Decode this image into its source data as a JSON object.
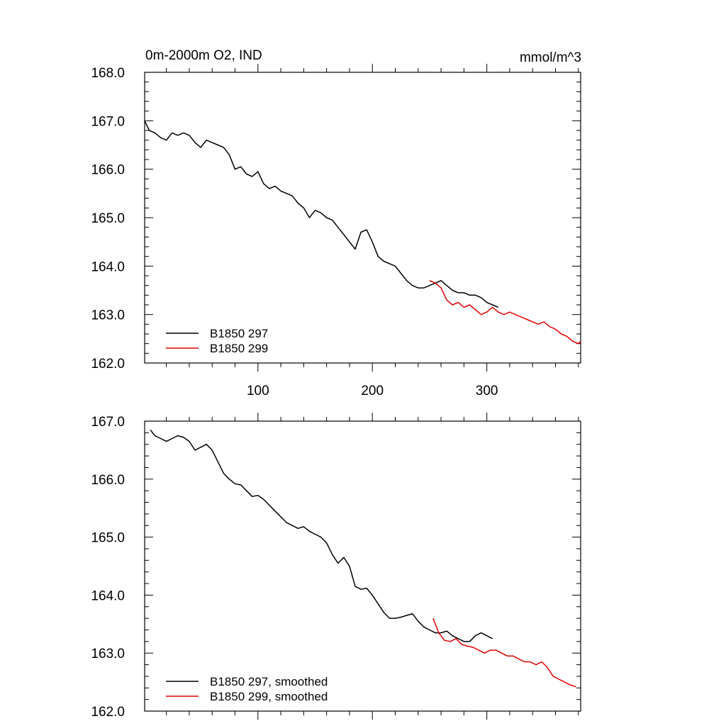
{
  "chart_data": [
    {
      "type": "line",
      "title": "0m-2000m O2, IND",
      "units": "mmol/m^3",
      "xlabel": "",
      "ylabel": "",
      "xlim": [
        1,
        382
      ],
      "ylim": [
        162.0,
        168.0
      ],
      "x_ticks": [
        100,
        200,
        300
      ],
      "x_tick_labels": [
        "100",
        "200",
        "300"
      ],
      "y_ticks": [
        162.0,
        163.0,
        164.0,
        165.0,
        166.0,
        167.0,
        168.0
      ],
      "y_tick_labels": [
        "162.0",
        "163.0",
        "164.0",
        "165.0",
        "166.0",
        "167.0",
        "168.0"
      ],
      "legend_position": "bottom-left",
      "series": [
        {
          "name": "B1850 297",
          "color": "#000000",
          "x": [
            1,
            5,
            10,
            15,
            20,
            25,
            30,
            35,
            40,
            45,
            50,
            55,
            60,
            65,
            70,
            75,
            80,
            85,
            90,
            95,
            100,
            105,
            110,
            115,
            120,
            125,
            130,
            135,
            140,
            145,
            150,
            155,
            160,
            165,
            170,
            175,
            180,
            185,
            190,
            195,
            200,
            205,
            210,
            215,
            220,
            225,
            230,
            235,
            240,
            245,
            250,
            255,
            260,
            265,
            270,
            275,
            280,
            285,
            290,
            295,
            300,
            305,
            310
          ],
          "values": [
            167.0,
            166.8,
            166.75,
            166.65,
            166.6,
            166.75,
            166.7,
            166.75,
            166.7,
            166.55,
            166.45,
            166.6,
            166.55,
            166.5,
            166.45,
            166.3,
            166.0,
            166.05,
            165.9,
            165.85,
            165.95,
            165.7,
            165.6,
            165.65,
            165.55,
            165.5,
            165.45,
            165.3,
            165.2,
            165.0,
            165.15,
            165.1,
            165.0,
            164.95,
            164.8,
            164.65,
            164.5,
            164.35,
            164.7,
            164.75,
            164.5,
            164.2,
            164.1,
            164.05,
            164.0,
            163.85,
            163.7,
            163.6,
            163.55,
            163.55,
            163.6,
            163.65,
            163.7,
            163.6,
            163.5,
            163.45,
            163.45,
            163.4,
            163.4,
            163.35,
            163.25,
            163.2,
            163.15
          ]
        },
        {
          "name": "B1850 299",
          "color": "#e00000",
          "x": [
            250,
            255,
            260,
            265,
            270,
            275,
            280,
            285,
            290,
            295,
            300,
            305,
            310,
            315,
            320,
            325,
            330,
            335,
            340,
            345,
            350,
            355,
            360,
            365,
            370,
            375,
            380,
            382
          ],
          "values": [
            163.7,
            163.65,
            163.55,
            163.3,
            163.2,
            163.25,
            163.15,
            163.2,
            163.1,
            163.0,
            163.05,
            163.15,
            163.05,
            163.0,
            163.05,
            163.0,
            162.95,
            162.9,
            162.85,
            162.8,
            162.85,
            162.75,
            162.7,
            162.6,
            162.55,
            162.45,
            162.4,
            162.45
          ]
        }
      ]
    },
    {
      "type": "line",
      "title": "",
      "xlabel": "",
      "ylabel": "",
      "xlim": [
        1,
        382
      ],
      "ylim": [
        162.0,
        167.0
      ],
      "x_ticks": [
        100,
        200,
        300
      ],
      "x_tick_labels": [],
      "y_ticks": [
        162.0,
        163.0,
        164.0,
        165.0,
        166.0,
        167.0
      ],
      "y_tick_labels": [
        "162.0",
        "163.0",
        "164.0",
        "165.0",
        "166.0",
        "167.0"
      ],
      "legend_position": "bottom-left",
      "series": [
        {
          "name": "B1850 297, smoothed",
          "color": "#000000",
          "x": [
            6,
            10,
            15,
            20,
            25,
            30,
            35,
            40,
            45,
            50,
            55,
            60,
            65,
            70,
            75,
            80,
            85,
            90,
            95,
            100,
            105,
            110,
            115,
            120,
            125,
            130,
            135,
            140,
            145,
            150,
            155,
            160,
            165,
            170,
            175,
            180,
            185,
            190,
            195,
            200,
            205,
            210,
            215,
            220,
            225,
            230,
            235,
            240,
            245,
            250,
            255,
            260,
            265,
            270,
            275,
            280,
            285,
            290,
            295,
            300,
            305
          ],
          "values": [
            166.85,
            166.75,
            166.7,
            166.65,
            166.7,
            166.75,
            166.72,
            166.65,
            166.5,
            166.55,
            166.6,
            166.5,
            166.3,
            166.1,
            166.0,
            165.92,
            165.9,
            165.8,
            165.7,
            165.72,
            165.65,
            165.55,
            165.45,
            165.35,
            165.25,
            165.2,
            165.15,
            165.18,
            165.1,
            165.05,
            165.0,
            164.9,
            164.7,
            164.55,
            164.65,
            164.5,
            164.15,
            164.1,
            164.12,
            164.0,
            163.85,
            163.7,
            163.6,
            163.6,
            163.62,
            163.65,
            163.68,
            163.55,
            163.45,
            163.4,
            163.35,
            163.35,
            163.38,
            163.3,
            163.25,
            163.2,
            163.2,
            163.3,
            163.35,
            163.3,
            163.25
          ]
        },
        {
          "name": "B1850 299, smoothed",
          "color": "#e00000",
          "x": [
            253,
            258,
            263,
            268,
            273,
            278,
            283,
            288,
            293,
            298,
            303,
            308,
            313,
            318,
            323,
            328,
            333,
            338,
            343,
            348,
            353,
            358,
            363,
            368,
            373,
            378
          ],
          "values": [
            163.6,
            163.35,
            163.22,
            163.2,
            163.25,
            163.15,
            163.12,
            163.1,
            163.05,
            163.0,
            163.05,
            163.05,
            163.0,
            162.95,
            162.95,
            162.9,
            162.85,
            162.85,
            162.8,
            162.85,
            162.75,
            162.6,
            162.55,
            162.5,
            162.45,
            162.42
          ]
        }
      ]
    }
  ]
}
